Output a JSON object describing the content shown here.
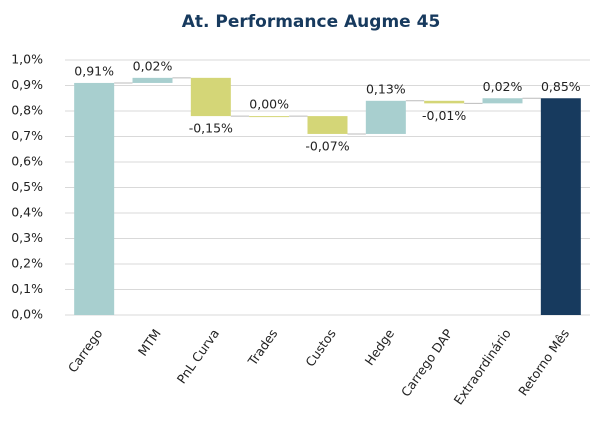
{
  "chart_data": {
    "type": "waterfall",
    "title": "At. Performance Augme 45",
    "categories": [
      "Carrego",
      "MTM",
      "PnL Curva",
      "Trades",
      "Custos",
      "Hedge",
      "Carrego DAP",
      "Extraordinário",
      "Retorno Mês"
    ],
    "values": [
      0.91,
      0.02,
      -0.15,
      0.0,
      -0.07,
      0.13,
      -0.01,
      0.02,
      0.85
    ],
    "value_labels": [
      "0,91%",
      "0,02%",
      "-0,15%",
      "0,00%",
      "-0,07%",
      "0,13%",
      "-0,01%",
      "0,02%",
      "0,85%"
    ],
    "measure": [
      "absolute",
      "relative",
      "relative",
      "relative",
      "relative",
      "relative",
      "relative",
      "relative",
      "total"
    ],
    "colors": [
      "#a8cfcf",
      "#a8cfcf",
      "#d4d677",
      "#d4d677",
      "#d4d677",
      "#a8cfcf",
      "#d4d677",
      "#a8cfcf",
      "#173a5e"
    ],
    "ylim": [
      0,
      1.0
    ],
    "yticks": [
      {
        "value": 0,
        "label": "0,0%"
      },
      {
        "value": 0.1,
        "label": "0,1%"
      },
      {
        "value": 0.2,
        "label": "0,2%"
      },
      {
        "value": 0.3,
        "label": "0,3%"
      },
      {
        "value": 0.4,
        "label": "0,4%"
      },
      {
        "value": 0.5,
        "label": "0,5%"
      },
      {
        "value": 0.6,
        "label": "0,6%"
      },
      {
        "value": 0.7,
        "label": "0,7%"
      },
      {
        "value": 0.8,
        "label": "0,8%"
      },
      {
        "value": 0.9,
        "label": "0,9%"
      },
      {
        "value": 1.0,
        "label": "1,0%"
      }
    ],
    "grid": true
  }
}
